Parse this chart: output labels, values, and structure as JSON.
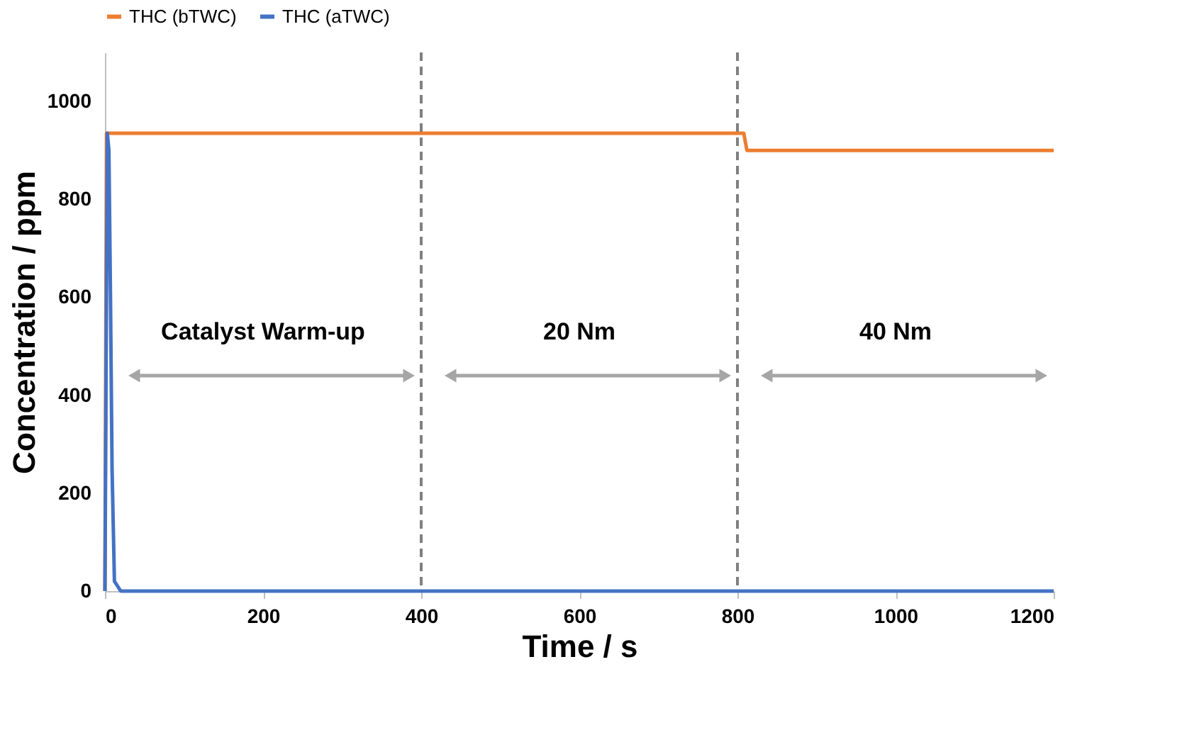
{
  "chart_data": {
    "type": "line",
    "xlabel": "Time / s",
    "ylabel": "Concentration / ppm",
    "xlim": [
      0,
      1200
    ],
    "xticks": [
      0,
      200,
      400,
      600,
      800,
      1000,
      1200
    ],
    "ylim": [
      0,
      1100
    ],
    "yticks": [
      0,
      200,
      400,
      600,
      800,
      1000
    ],
    "grid": false,
    "legend": "top",
    "line_style": "solid",
    "marker": "none",
    "series": [
      {
        "name": "THC (bTWC)",
        "color": "#ed7d31",
        "x": [
          0,
          2,
          400,
          808,
          812,
          1200
        ],
        "values": [
          0,
          935,
          935,
          935,
          900,
          900
        ]
      },
      {
        "name": "THC (aTWC)",
        "color": "#4472c4",
        "x": [
          0,
          3,
          5,
          7,
          9,
          12,
          20,
          400,
          800,
          1200
        ],
        "values": [
          0,
          935,
          900,
          600,
          250,
          20,
          0,
          0,
          0,
          0
        ]
      }
    ],
    "ref_lines": [
      {
        "axis": "x",
        "value": 400,
        "color": "#808080",
        "line_style": "dashed"
      },
      {
        "axis": "x",
        "value": 800,
        "color": "#808080",
        "line_style": "dashed"
      }
    ],
    "annotations": [
      "Catalyst Warm-up",
      "20 Nm",
      "40 Nm"
    ]
  }
}
